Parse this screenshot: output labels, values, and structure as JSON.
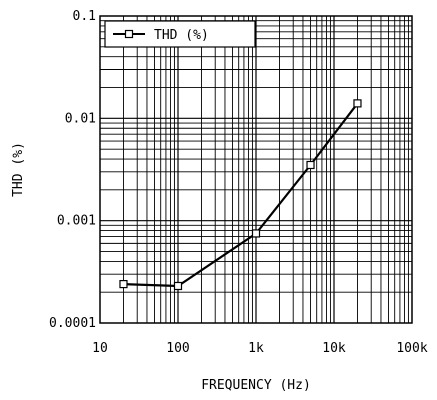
{
  "chart_data": {
    "type": "line",
    "xscale": "log",
    "yscale": "log",
    "xlim": [
      10,
      100000
    ],
    "ylim": [
      0.0001,
      0.1
    ],
    "xlabel": "FREQUENCY (Hz)",
    "ylabel": "THD (%)",
    "grid": true,
    "legend": {
      "position": "top-left",
      "entries": [
        "THD (%)"
      ]
    },
    "x_ticks": [
      {
        "value": 10,
        "label": "10"
      },
      {
        "value": 100,
        "label": "100"
      },
      {
        "value": 1000,
        "label": "1k"
      },
      {
        "value": 10000,
        "label": "10k"
      },
      {
        "value": 100000,
        "label": "100k"
      }
    ],
    "y_ticks": [
      {
        "value": 0.0001,
        "label": "0.0001"
      },
      {
        "value": 0.001,
        "label": "0.001"
      },
      {
        "value": 0.01,
        "label": "0.01"
      },
      {
        "value": 0.1,
        "label": "0.1"
      }
    ],
    "series": [
      {
        "name": "THD (%)",
        "x": [
          20,
          100,
          1000,
          5000,
          20000
        ],
        "y": [
          0.00024,
          0.00023,
          0.00075,
          0.0035,
          0.014
        ]
      }
    ]
  }
}
